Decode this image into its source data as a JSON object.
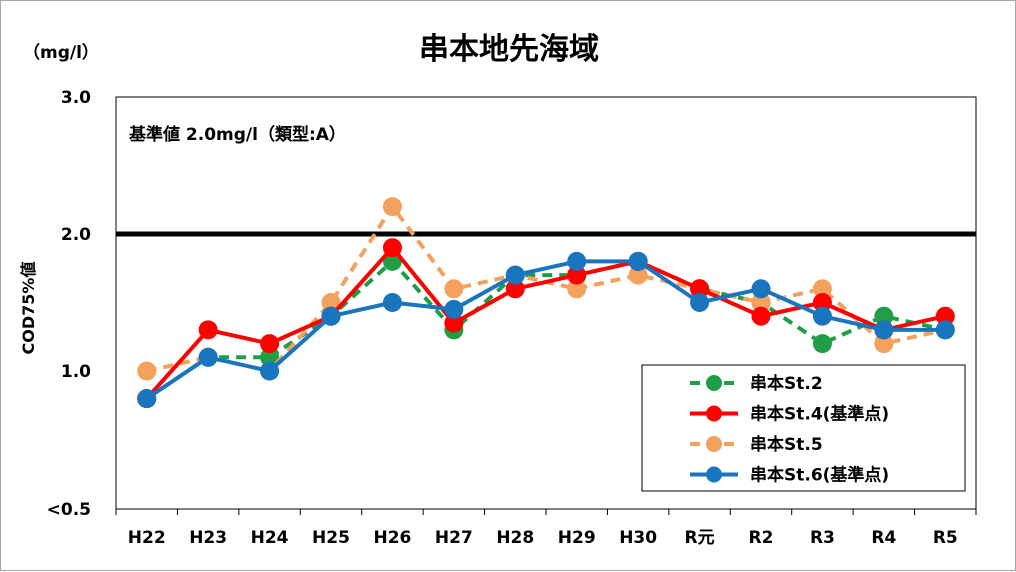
{
  "chart_data": {
    "type": "line",
    "title": "串本地先海域",
    "unit_label": "（mg/l）",
    "ylabel": "COD75%値",
    "xlabel": "",
    "categories": [
      "H22",
      "H23",
      "H24",
      "H25",
      "H26",
      "H27",
      "H28",
      "H29",
      "H30",
      "R元",
      "R2",
      "R3",
      "R4",
      "R5"
    ],
    "ylim": [
      0.5,
      3.0
    ],
    "yticks": [
      "<0.5",
      "1.0",
      "2.0",
      "3.0"
    ],
    "ytick_values": [
      0.5,
      1.0,
      2.0,
      3.0
    ],
    "grid": false,
    "reference_line": {
      "value": 2.0,
      "color": "#000000"
    },
    "annotation": "基準値  2.0mg/l（類型:A）",
    "legend_position": "bottom-right",
    "series": [
      {
        "name": "串本St.2",
        "color": "#1f9e45",
        "dashed": true,
        "values": [
          0.9,
          1.1,
          1.1,
          1.4,
          1.8,
          1.3,
          1.7,
          1.7,
          1.8,
          1.6,
          1.5,
          1.2,
          1.4,
          1.3
        ]
      },
      {
        "name": "串本St.4(基準点)",
        "color": "#ff0000",
        "dashed": false,
        "values": [
          0.9,
          1.3,
          1.2,
          1.4,
          1.9,
          1.35,
          1.6,
          1.7,
          1.8,
          1.6,
          1.4,
          1.5,
          1.3,
          1.4
        ]
      },
      {
        "name": "串本St.5",
        "color": "#f4a15d",
        "dashed": true,
        "values": [
          1.0,
          1.1,
          1.0,
          1.5,
          2.2,
          1.6,
          1.7,
          1.6,
          1.7,
          1.6,
          1.5,
          1.6,
          1.2,
          1.3
        ]
      },
      {
        "name": "串本St.6(基準点)",
        "color": "#1a75bf",
        "dashed": false,
        "values": [
          0.9,
          1.1,
          1.0,
          1.4,
          1.5,
          1.45,
          1.7,
          1.8,
          1.8,
          1.5,
          1.6,
          1.4,
          1.3,
          1.3
        ]
      }
    ]
  }
}
